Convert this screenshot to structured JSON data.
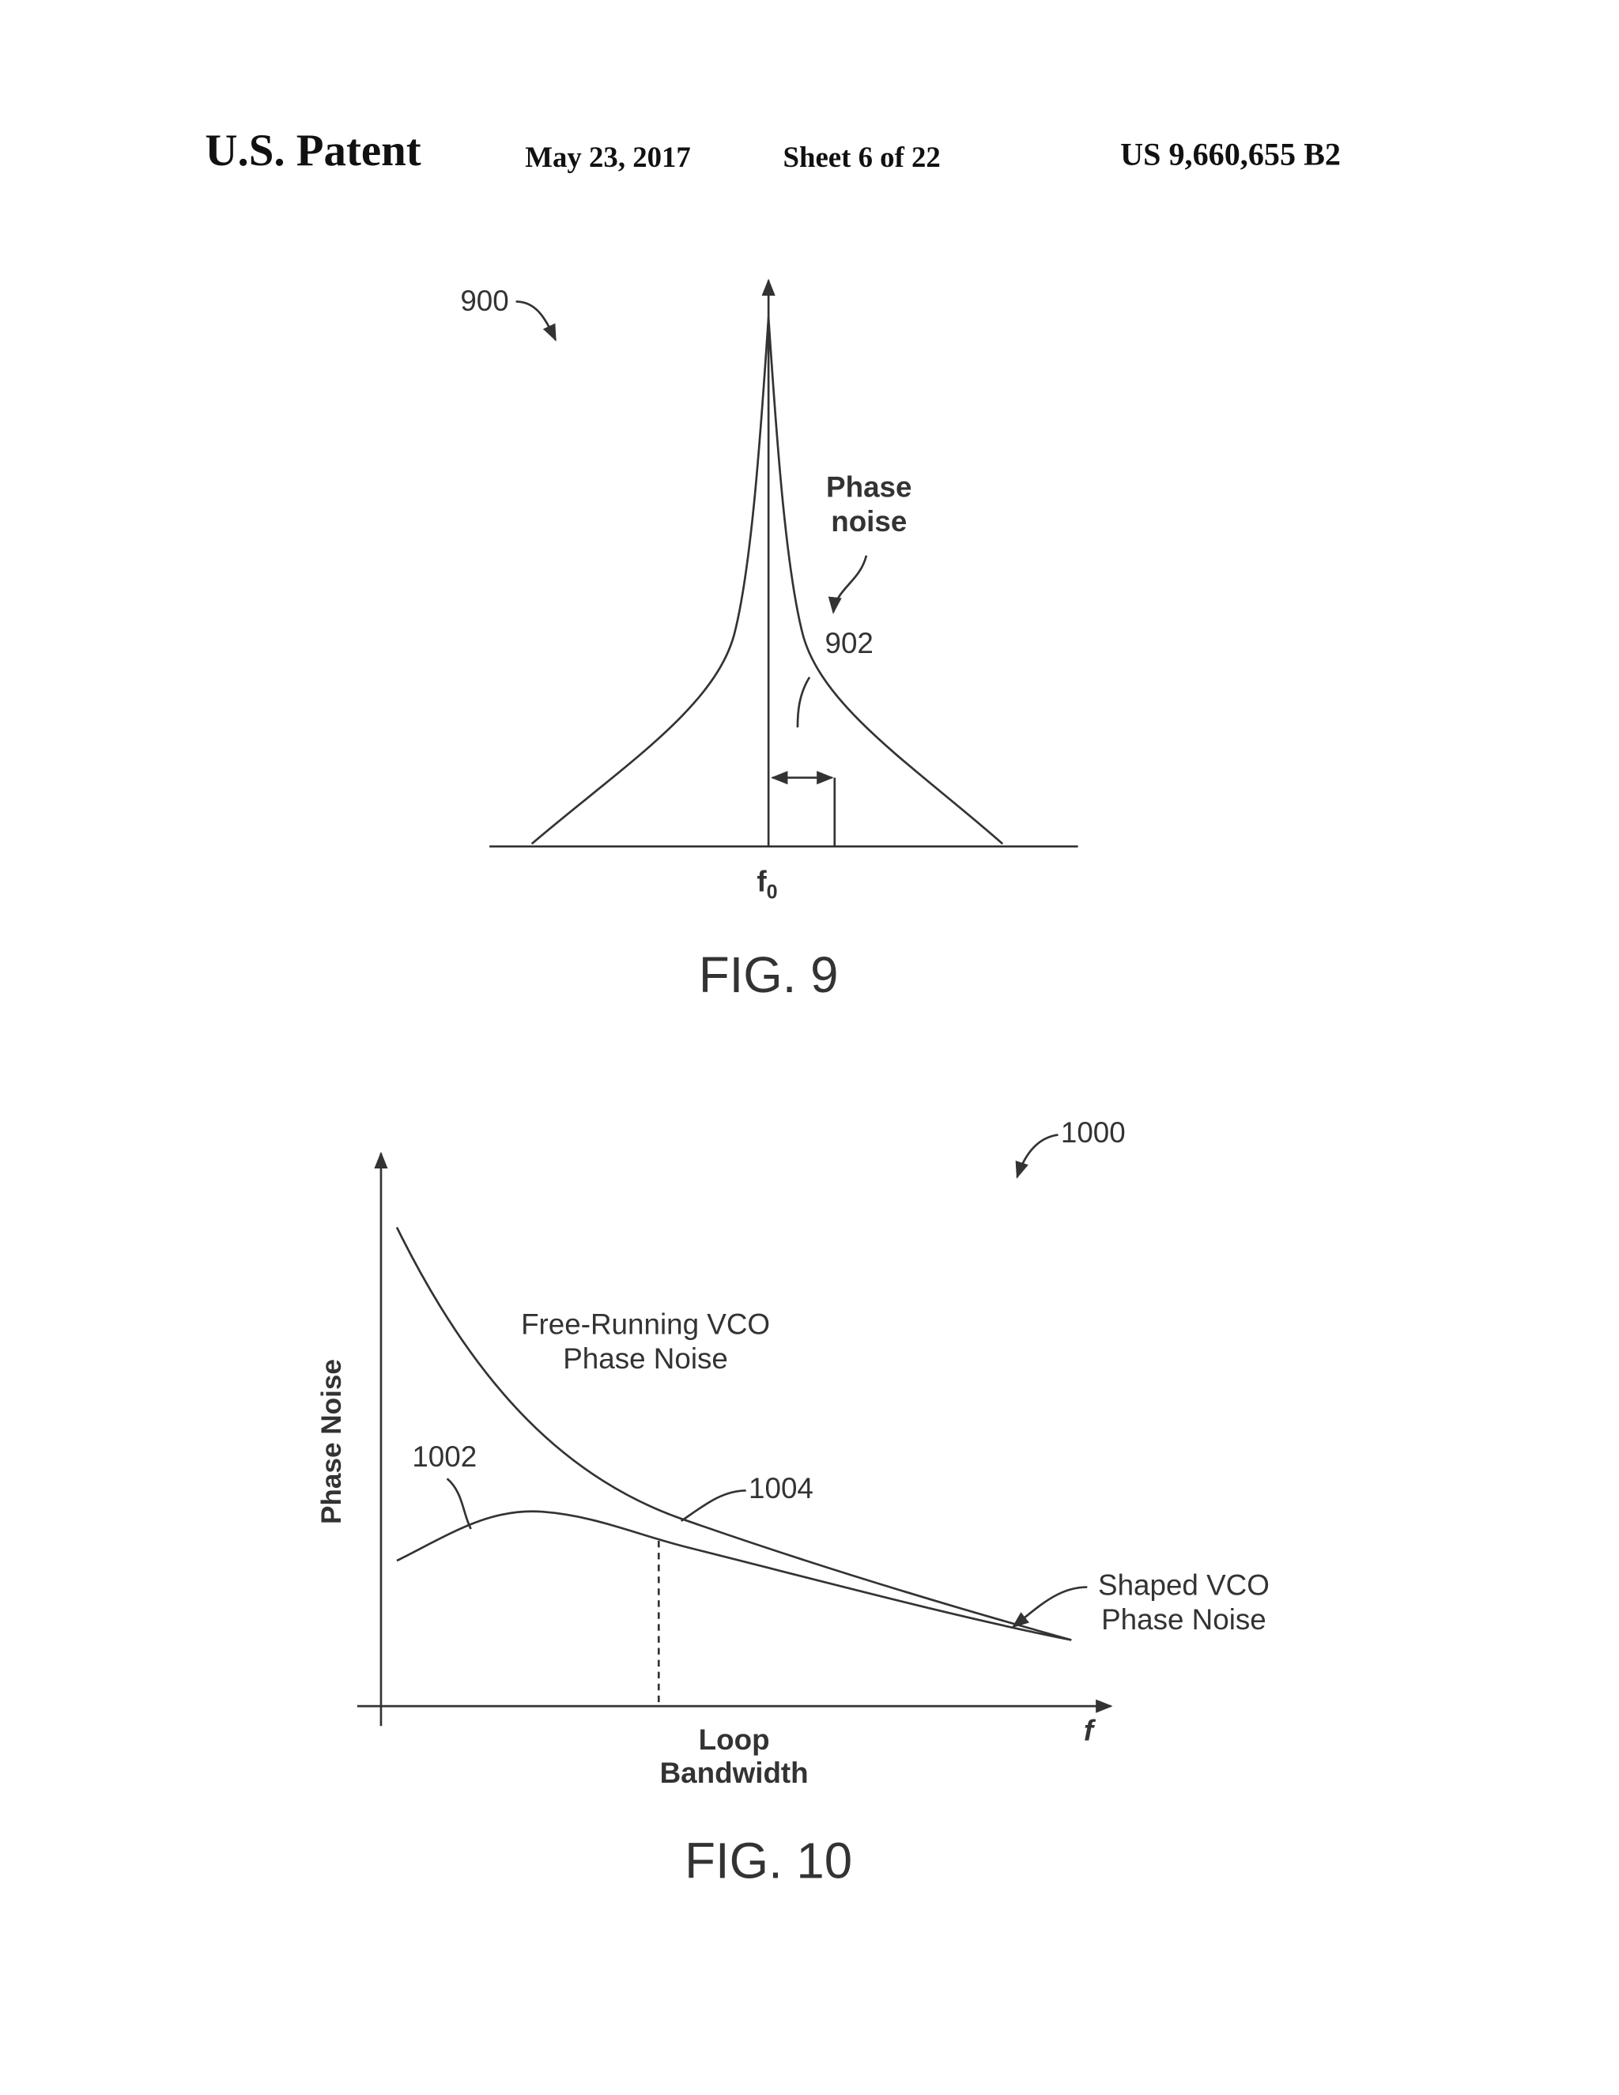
{
  "header": {
    "publication": "U.S. Patent",
    "date": "May 23, 2017",
    "sheet": "Sheet 6 of 22",
    "number": "US 9,660,655 B2"
  },
  "fig9": {
    "reference": "900",
    "curve_label": [
      "Phase",
      "noise"
    ],
    "curve_reference": "902",
    "axis_label": "f",
    "axis_label_subscript": "0",
    "caption": "FIG. 9"
  },
  "fig10": {
    "reference": "1000",
    "free_running_label": [
      "Free-Running VCO",
      "Phase Noise"
    ],
    "shaped_label": [
      "Shaped VCO",
      "Phase Noise"
    ],
    "shaped_curve_reference": "1002",
    "free_running_curve_reference": "1004",
    "y_axis_label": "Phase Noise",
    "x_axis_label": [
      "Loop",
      "Bandwidth"
    ],
    "x_axis_symbol": "f",
    "caption": "FIG. 10"
  }
}
